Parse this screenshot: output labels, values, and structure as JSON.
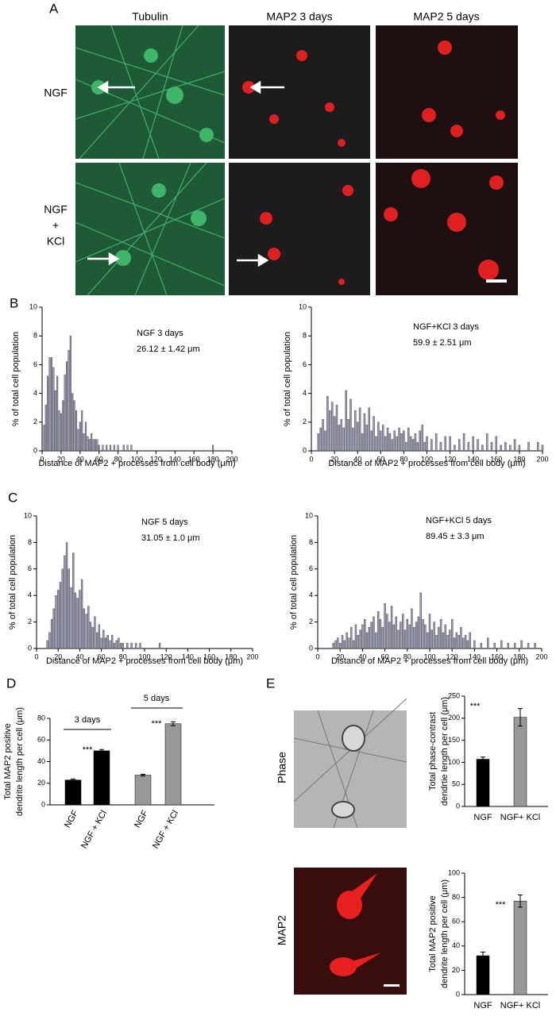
{
  "panel_a": {
    "label": "A",
    "columns": [
      "Tubulin",
      "MAP2 3 days",
      "MAP2 5 days"
    ],
    "rows": [
      [
        "NGF"
      ],
      [
        "NGF",
        "+",
        "KCl"
      ]
    ]
  },
  "panel_labels": {
    "b": "B",
    "c": "C",
    "d": "D",
    "e": "E"
  },
  "panel_e_images": [
    "Phase",
    "MAP2"
  ],
  "chart_data": [
    {
      "type": "bar",
      "color": "#9a9ab8",
      "annotations": [
        "NGF 3 days",
        "26.12 ± 1.42 μm"
      ],
      "xlabel": "Distance of MAP2 + processes from cell body (μm)",
      "ylabel": "% of total cell population",
      "xlim": [
        0,
        200
      ],
      "xticks": [
        0,
        20,
        40,
        60,
        80,
        100,
        120,
        140,
        160,
        180,
        200
      ],
      "ylim": [
        0,
        10
      ],
      "yticks": [
        0,
        2,
        4,
        6,
        8,
        10
      ],
      "x": [
        2,
        4,
        6,
        8,
        10,
        12,
        14,
        16,
        18,
        20,
        22,
        24,
        26,
        28,
        30,
        32,
        34,
        36,
        38,
        40,
        42,
        44,
        46,
        48,
        50,
        52,
        54,
        56,
        58,
        60,
        64,
        68,
        72,
        76,
        80,
        86,
        90,
        94,
        180
      ],
      "values": [
        1.8,
        3.2,
        5.2,
        6.5,
        6.5,
        5.8,
        4.2,
        5.2,
        2.8,
        2.6,
        3.5,
        5.3,
        6.2,
        7.0,
        8.0,
        4.0,
        3.5,
        2.8,
        1.5,
        2.0,
        2.8,
        1.2,
        2.0,
        1.0,
        0.8,
        1.2,
        0.8,
        0.8,
        0.8,
        0.4,
        0.4,
        0.4,
        0.4,
        0.4,
        0.4,
        0.4,
        0.4,
        0.4,
        0.4
      ]
    },
    {
      "type": "bar",
      "color": "#9a9ab8",
      "annotations": [
        "NGF+KCl 3 days",
        "59.9 ± 2.51 μm"
      ],
      "xlabel": "Distance of MAP2 + processes from cell body (μm)",
      "ylabel": "% of total cell population",
      "xlim": [
        0,
        200
      ],
      "xticks": [
        0,
        20,
        40,
        60,
        80,
        100,
        120,
        140,
        160,
        180,
        200
      ],
      "ylim": [
        0,
        10
      ],
      "yticks": [
        0,
        2,
        4,
        6,
        8,
        10
      ],
      "x": [
        6,
        8,
        10,
        12,
        14,
        16,
        18,
        20,
        22,
        24,
        26,
        28,
        30,
        32,
        34,
        36,
        38,
        40,
        42,
        44,
        46,
        48,
        50,
        52,
        54,
        56,
        58,
        60,
        62,
        64,
        66,
        68,
        70,
        72,
        74,
        76,
        78,
        80,
        82,
        84,
        86,
        88,
        90,
        92,
        94,
        96,
        98,
        100,
        104,
        108,
        112,
        116,
        120,
        124,
        128,
        132,
        136,
        140,
        144,
        148,
        152,
        156,
        160,
        164,
        168,
        172,
        176,
        180,
        188,
        196,
        200
      ],
      "values": [
        1.2,
        1.6,
        2.2,
        1.4,
        3.8,
        2.8,
        3.4,
        2.4,
        3.2,
        1.8,
        2.2,
        1.6,
        4.2,
        2.2,
        3.6,
        1.6,
        2.8,
        2.0,
        3.0,
        1.2,
        2.6,
        1.8,
        3.0,
        1.4,
        2.4,
        1.0,
        2.0,
        1.4,
        1.8,
        1.0,
        1.6,
        1.2,
        0.8,
        1.4,
        1.0,
        1.6,
        1.2,
        1.4,
        0.6,
        1.6,
        1.0,
        0.8,
        1.2,
        0.6,
        1.4,
        1.8,
        0.6,
        1.0,
        0.8,
        1.2,
        0.6,
        1.0,
        1.0,
        0.4,
        0.8,
        1.2,
        0.6,
        1.0,
        0.8,
        0.4,
        1.2,
        0.6,
        1.0,
        0.4,
        0.6,
        0.4,
        0.8,
        0.4,
        0.6,
        0.6,
        0.4
      ]
    },
    {
      "type": "bar",
      "color": "#9a9ab8",
      "annotations": [
        "NGF 5 days",
        "31.05 ± 1.0 μm"
      ],
      "xlabel": "Distance of MAP2 + processes from cell body (μm)",
      "ylabel": "% of total cell population",
      "xlim": [
        0,
        200
      ],
      "xticks": [
        0,
        20,
        40,
        60,
        80,
        100,
        120,
        140,
        160,
        180,
        200
      ],
      "ylim": [
        0,
        10
      ],
      "yticks": [
        0,
        2,
        4,
        6,
        8,
        10
      ],
      "x": [
        10,
        12,
        14,
        16,
        18,
        20,
        22,
        24,
        26,
        28,
        30,
        32,
        34,
        36,
        38,
        40,
        42,
        44,
        46,
        48,
        50,
        52,
        54,
        56,
        58,
        60,
        62,
        64,
        66,
        68,
        70,
        72,
        74,
        76,
        78,
        80,
        84,
        88,
        92,
        96,
        114
      ],
      "values": [
        0.6,
        1.2,
        2.2,
        3.0,
        4.0,
        4.4,
        5.0,
        6.0,
        7.0,
        8.0,
        6.0,
        4.6,
        7.2,
        4.2,
        3.8,
        4.4,
        5.2,
        3.0,
        2.6,
        3.2,
        2.0,
        1.6,
        2.4,
        1.2,
        1.8,
        0.8,
        1.4,
        0.8,
        1.0,
        0.6,
        1.0,
        0.4,
        0.6,
        0.8,
        0.4,
        0.4,
        0.4,
        0.4,
        0.4,
        0.4,
        0.4
      ]
    },
    {
      "type": "bar",
      "color": "#9a9ab8",
      "annotations": [
        "NGF+KCl 5 days",
        "89.45 ± 3.3 μm"
      ],
      "xlabel": "Distance of MAP2 + processes from cell body (μm)",
      "ylabel": "% of total cell population",
      "xlim": [
        0,
        200
      ],
      "xticks": [
        0,
        20,
        40,
        60,
        80,
        100,
        120,
        140,
        160,
        180,
        200
      ],
      "ylim": [
        0,
        10
      ],
      "yticks": [
        0,
        2,
        4,
        6,
        8,
        10
      ],
      "x": [
        14,
        16,
        18,
        20,
        22,
        24,
        26,
        28,
        30,
        32,
        34,
        36,
        38,
        40,
        42,
        44,
        46,
        48,
        50,
        52,
        54,
        56,
        58,
        60,
        62,
        64,
        66,
        68,
        70,
        72,
        74,
        76,
        78,
        80,
        82,
        84,
        86,
        88,
        90,
        92,
        94,
        96,
        98,
        100,
        102,
        104,
        106,
        108,
        110,
        112,
        114,
        116,
        118,
        120,
        122,
        124,
        126,
        128,
        130,
        132,
        134,
        136,
        140,
        146,
        152,
        158,
        164,
        170,
        176,
        182,
        188,
        194
      ],
      "values": [
        0.4,
        0.6,
        0.8,
        0.4,
        1.0,
        0.6,
        1.2,
        0.8,
        1.6,
        0.6,
        1.8,
        1.0,
        1.4,
        1.8,
        2.2,
        1.2,
        1.6,
        2.0,
        2.4,
        1.2,
        2.8,
        2.2,
        1.6,
        3.4,
        2.6,
        2.0,
        3.2,
        1.8,
        2.4,
        1.4,
        2.0,
        2.6,
        1.4,
        2.2,
        1.8,
        3.0,
        1.6,
        2.0,
        2.4,
        4.2,
        2.2,
        1.8,
        1.2,
        2.6,
        1.4,
        2.0,
        1.0,
        1.6,
        2.2,
        1.2,
        1.8,
        1.0,
        1.4,
        2.2,
        0.8,
        1.2,
        1.0,
        1.6,
        0.8,
        1.0,
        0.6,
        1.2,
        0.6,
        0.4,
        0.8,
        0.4,
        0.6,
        0.4,
        0.4,
        0.6,
        0.4,
        0.4
      ]
    },
    {
      "type": "errorbar",
      "annotations": [
        "3 days",
        "5 days",
        "***",
        "***"
      ],
      "ylabel": [
        "Total MAP2 positive",
        "dendrite length per cell (μm)"
      ],
      "categories": [
        "NGF",
        "NGF + KCl",
        "NGF",
        "NGF + KCl"
      ],
      "values": [
        23,
        50,
        27.5,
        75
      ],
      "errors": [
        0.8,
        1.2,
        0.8,
        1.8
      ],
      "colors": [
        "#000000",
        "#000000",
        "#999999",
        "#999999"
      ],
      "ylim": [
        0,
        80
      ],
      "yticks": [
        0,
        20,
        40,
        60,
        80
      ]
    },
    {
      "type": "errorbar",
      "annotations": [
        "***"
      ],
      "ylabel": [
        "Total phase-contrast",
        "dendrtie length per cell (μm)"
      ],
      "categories": [
        "NGF",
        "NGF+ KCl"
      ],
      "values": [
        107,
        202
      ],
      "errors": [
        5,
        20
      ],
      "colors": [
        "#000000",
        "#999999"
      ],
      "ylim": [
        0,
        250
      ],
      "yticks": [
        0,
        50,
        100,
        150,
        200,
        250
      ]
    },
    {
      "type": "errorbar",
      "annotations": [
        "***"
      ],
      "ylabel": [
        "Total MAP2 positive",
        "dendrite length per cell (μm)"
      ],
      "categories": [
        "NGF",
        "NGF+ KCl"
      ],
      "values": [
        32,
        77
      ],
      "errors": [
        3,
        5
      ],
      "colors": [
        "#000000",
        "#999999"
      ],
      "ylim": [
        0,
        100
      ],
      "yticks": [
        0,
        20,
        40,
        60,
        80,
        100
      ]
    }
  ]
}
